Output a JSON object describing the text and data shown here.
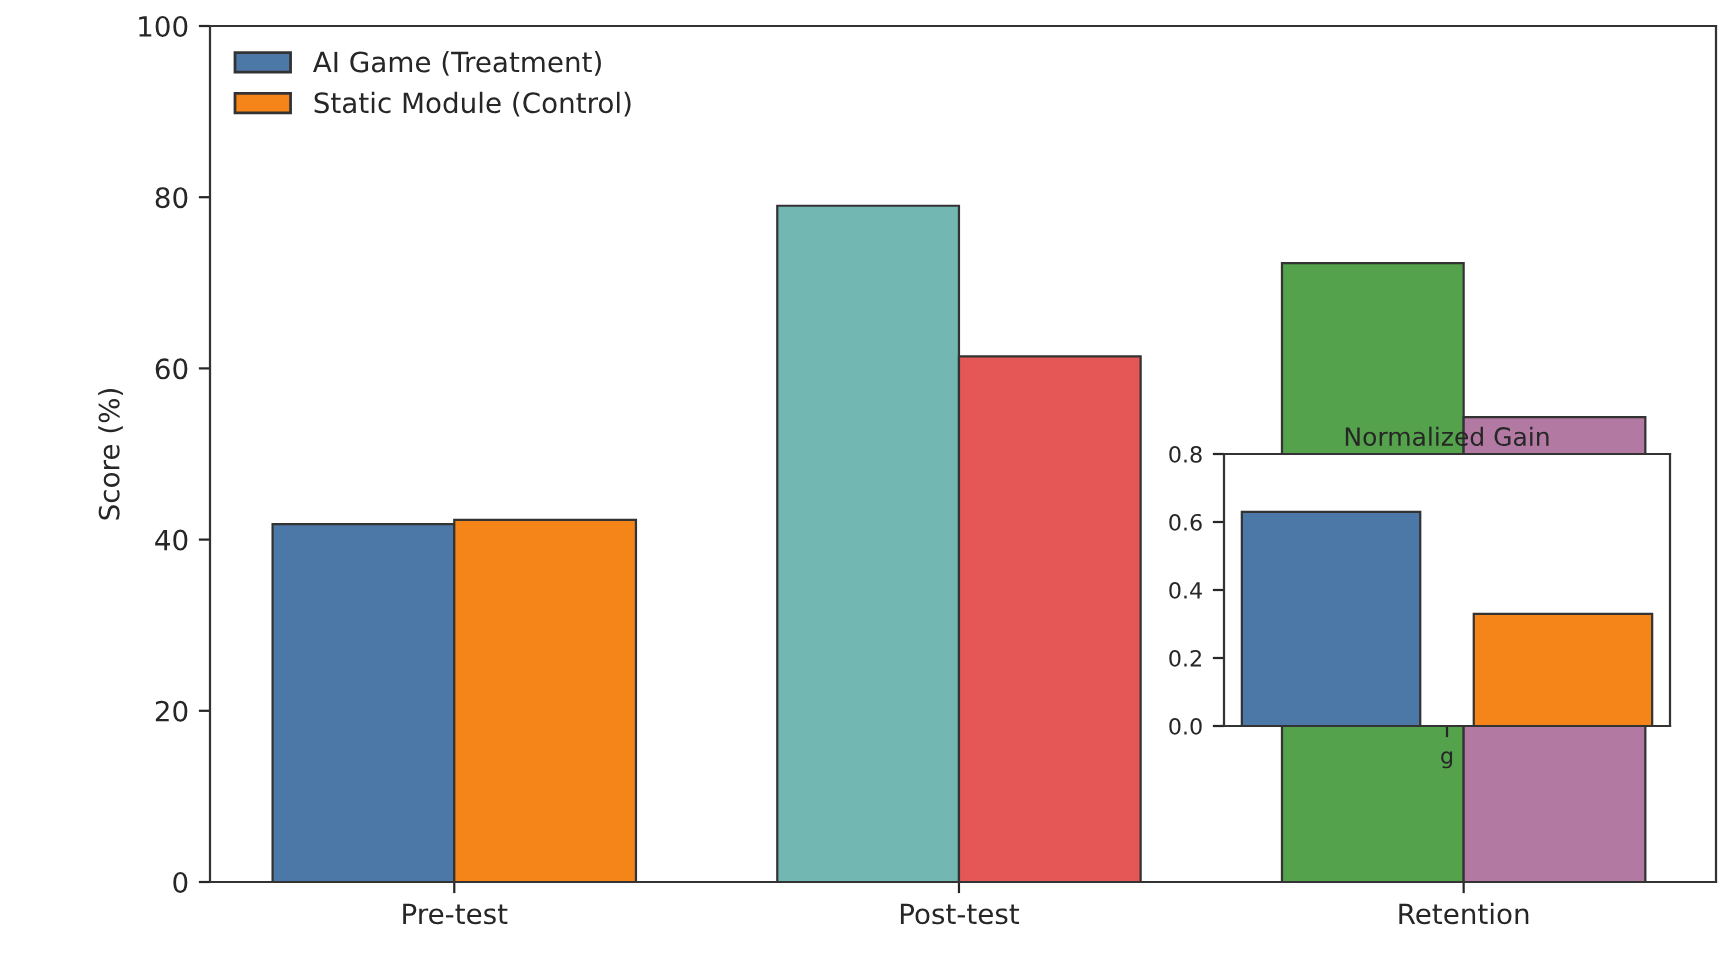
{
  "chart_data": [
    {
      "type": "bar",
      "categories": [
        "Pre-test",
        "Post-test",
        "Retention"
      ],
      "ylabel": "Score (%)",
      "ylim": [
        0,
        100
      ],
      "yticks": [
        0,
        20,
        40,
        60,
        80,
        100
      ],
      "legend": "top left",
      "grid": false,
      "series": [
        {
          "name": "AI Game (Treatment)",
          "color": "#4c78a8",
          "colors": [
            "#4c78a8",
            "#72b7b2",
            "#54a24b"
          ],
          "values": [
            41.8,
            79,
            72.3
          ]
        },
        {
          "name": "Static Module (Control)",
          "color": "#f58518",
          "colors": [
            "#f58518",
            "#e45756",
            "#b279a2"
          ],
          "values": [
            42.3,
            61.4,
            54.3
          ]
        }
      ]
    },
    {
      "type": "bar",
      "title": "Normalized Gain",
      "categories": [
        "g"
      ],
      "ylim": [
        0,
        0.8
      ],
      "yticks": [
        {
          "value": 0,
          "label": "0.0"
        },
        {
          "value": 0.2,
          "label": "0.2"
        },
        {
          "value": 0.4,
          "label": "0.4"
        },
        {
          "value": 0.6,
          "label": "0.6"
        },
        {
          "value": 0.8,
          "label": "0.8"
        }
      ],
      "grid": false,
      "series": [
        {
          "color": "#4c78a8",
          "values": [
            0.63
          ]
        },
        {
          "color": "#f58518",
          "values": [
            0.33
          ]
        }
      ]
    }
  ]
}
